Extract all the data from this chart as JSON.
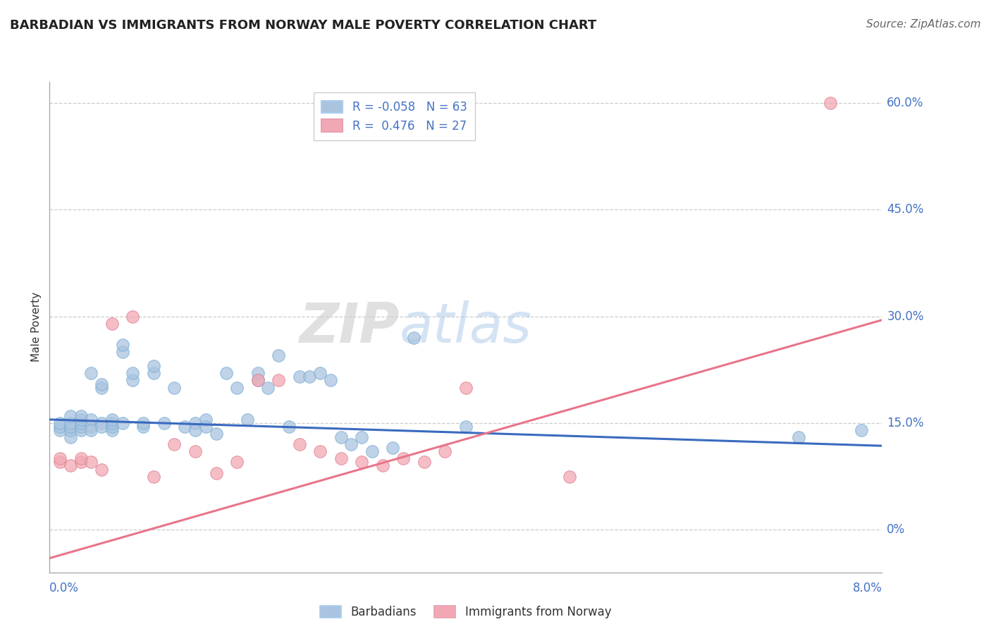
{
  "title": "BARBADIAN VS IMMIGRANTS FROM NORWAY MALE POVERTY CORRELATION CHART",
  "source": "Source: ZipAtlas.com",
  "ylabel": "Male Poverty",
  "yticks": [
    0.0,
    0.15,
    0.3,
    0.45,
    0.6
  ],
  "ytick_labels": [
    "0%",
    "15.0%",
    "30.0%",
    "45.0%",
    "60.0%"
  ],
  "xmin": 0.0,
  "xmax": 0.08,
  "ymin": -0.06,
  "ymax": 0.63,
  "r_blue": -0.058,
  "n_blue": 63,
  "r_pink": 0.476,
  "n_pink": 27,
  "blue_color": "#aac4e0",
  "pink_color": "#f2a8b4",
  "blue_line_color": "#3a6abf",
  "pink_line_color": "#e8758a",
  "watermark_zip": "ZIP",
  "watermark_atlas": "atlas",
  "legend_label_blue": "Barbadians",
  "legend_label_pink": "Immigrants from Norway",
  "blue_x": [
    0.001,
    0.001,
    0.001,
    0.002,
    0.002,
    0.002,
    0.002,
    0.002,
    0.003,
    0.003,
    0.003,
    0.003,
    0.003,
    0.004,
    0.004,
    0.004,
    0.004,
    0.005,
    0.005,
    0.005,
    0.005,
    0.006,
    0.006,
    0.006,
    0.006,
    0.007,
    0.007,
    0.007,
    0.008,
    0.008,
    0.009,
    0.009,
    0.01,
    0.01,
    0.011,
    0.012,
    0.013,
    0.014,
    0.014,
    0.015,
    0.015,
    0.016,
    0.017,
    0.018,
    0.019,
    0.02,
    0.02,
    0.021,
    0.022,
    0.023,
    0.024,
    0.025,
    0.026,
    0.027,
    0.028,
    0.029,
    0.03,
    0.031,
    0.033,
    0.035,
    0.04,
    0.072,
    0.078
  ],
  "blue_y": [
    0.14,
    0.145,
    0.15,
    0.13,
    0.14,
    0.145,
    0.15,
    0.16,
    0.14,
    0.145,
    0.15,
    0.155,
    0.16,
    0.22,
    0.155,
    0.145,
    0.14,
    0.2,
    0.205,
    0.15,
    0.145,
    0.14,
    0.145,
    0.15,
    0.155,
    0.25,
    0.26,
    0.15,
    0.21,
    0.22,
    0.145,
    0.15,
    0.22,
    0.23,
    0.15,
    0.2,
    0.145,
    0.15,
    0.14,
    0.155,
    0.145,
    0.135,
    0.22,
    0.2,
    0.155,
    0.21,
    0.22,
    0.2,
    0.245,
    0.145,
    0.215,
    0.215,
    0.22,
    0.21,
    0.13,
    0.12,
    0.13,
    0.11,
    0.115,
    0.27,
    0.145,
    0.13,
    0.14
  ],
  "pink_x": [
    0.001,
    0.001,
    0.002,
    0.003,
    0.003,
    0.004,
    0.005,
    0.006,
    0.008,
    0.01,
    0.012,
    0.014,
    0.016,
    0.018,
    0.02,
    0.022,
    0.024,
    0.026,
    0.028,
    0.03,
    0.032,
    0.034,
    0.036,
    0.038,
    0.04,
    0.05,
    0.075
  ],
  "pink_y": [
    0.095,
    0.1,
    0.09,
    0.095,
    0.1,
    0.095,
    0.085,
    0.29,
    0.3,
    0.075,
    0.12,
    0.11,
    0.08,
    0.095,
    0.21,
    0.21,
    0.12,
    0.11,
    0.1,
    0.095,
    0.09,
    0.1,
    0.095,
    0.11,
    0.2,
    0.075,
    0.6
  ],
  "blue_trendline": [
    0.155,
    0.118
  ],
  "pink_trendline": [
    -0.04,
    0.295
  ]
}
